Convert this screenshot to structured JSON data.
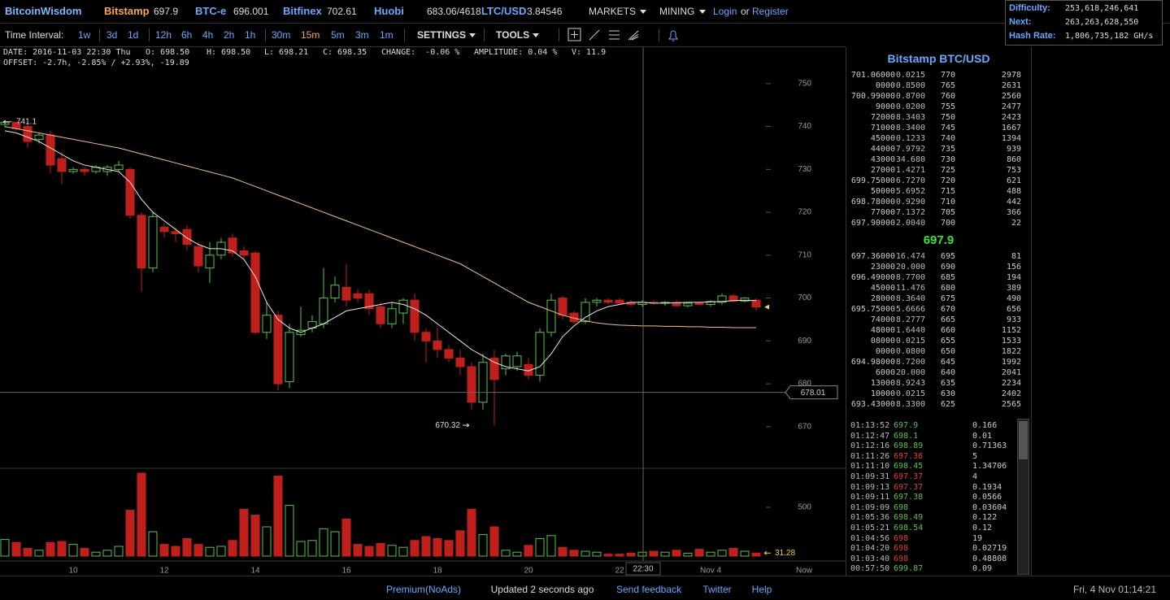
{
  "header": {
    "brand": "BitcoinWisdom",
    "tickers": [
      {
        "name": "Bitstamp",
        "price": "697.9"
      },
      {
        "name": "BTC-e",
        "price": "696.001"
      },
      {
        "name": "Bitfinex",
        "price": "702.61"
      },
      {
        "name": "Huobi",
        "price": "683.06/4618"
      },
      {
        "name": "LTC/USD",
        "price": "3.84546"
      }
    ],
    "menus": [
      "MARKETS",
      "MINING"
    ],
    "login": "Login",
    "or": "or",
    "register": "Register"
  },
  "network": [
    {
      "label": "Difficulty:",
      "value": "253,618,246,641"
    },
    {
      "label": "Next:",
      "value": "263,263,628,550"
    },
    {
      "label": "Hash Rate:",
      "value": "1,806,735,182 GH/s"
    }
  ],
  "toolbar": {
    "label": "Time Interval:",
    "intervals": [
      "1w",
      "3d",
      "1d",
      "12h",
      "6h",
      "4h",
      "2h",
      "1h",
      "30m",
      "15m",
      "5m",
      "3m",
      "1m"
    ],
    "settings": "SETTINGS",
    "tools": "TOOLS"
  },
  "info": {
    "fields": [
      "DATE: 2016-11-03 22:30 Thu",
      "O: 698.50",
      "H: 698.50",
      "L: 698.21",
      "C: 698.35",
      "CHANGE:  -0.06 %",
      "AMPLITUDE: 0.04 %",
      "V: 11.9"
    ],
    "offset": "OFFSET: -2.7h, -2.85% / +2.93%, -19.89"
  },
  "chart_data": {
    "type": "candlestick",
    "categories": [
      null,
      null,
      null,
      null,
      null,
      null,
      "10",
      null,
      null,
      null,
      null,
      null,
      null,
      null,
      "12",
      null,
      null,
      null,
      null,
      null,
      null,
      null,
      "14",
      null,
      null,
      null,
      null,
      null,
      null,
      null,
      "16",
      null,
      null,
      null,
      null,
      null,
      null,
      null,
      "18",
      null,
      null,
      null,
      null,
      null,
      null,
      null,
      "20",
      null,
      null,
      null,
      null,
      null,
      null,
      null,
      "22",
      null,
      null,
      null,
      null,
      null,
      null,
      null,
      "Nov 4",
      null,
      null,
      null,
      null
    ],
    "open": [
      740.5,
      741,
      740,
      737,
      738,
      732.5,
      729.5,
      730,
      729.5,
      729.5,
      730,
      730,
      719.3,
      707,
      716.5,
      715.5,
      716,
      712,
      707,
      710,
      714,
      711,
      710.5,
      692,
      696,
      680.5,
      691.5,
      693,
      694,
      700,
      702.5,
      701,
      701,
      698,
      694,
      696.5,
      699.5,
      692,
      690,
      688,
      686,
      684,
      675.7,
      686,
      683.5,
      684,
      684.5,
      682,
      692,
      700,
      696.5,
      694.5,
      699,
      699.5,
      699.5,
      699,
      698.5,
      699,
      698.8,
      699,
      698.2,
      698.8,
      698.5,
      699,
      700.5,
      699.3,
      699.5
    ],
    "high": [
      741.1,
      741,
      741,
      738.5,
      739,
      734,
      730.5,
      730.5,
      731,
      731,
      732,
      730.5,
      720,
      720,
      717.5,
      716.5,
      717,
      713,
      713,
      714,
      715,
      712,
      711,
      699,
      697,
      694,
      698,
      696,
      707,
      705,
      708,
      702,
      702,
      699,
      699,
      700,
      701,
      693,
      693,
      689,
      688,
      685,
      687,
      688,
      687,
      687.5,
      686,
      693,
      701,
      700.5,
      697,
      700,
      700,
      700,
      700,
      699.5,
      699.5,
      699.5,
      699.3,
      699.5,
      699,
      699.2,
      699.5,
      701,
      701,
      700.2,
      700
    ],
    "low": [
      739.8,
      739,
      735,
      736,
      729,
      726.5,
      729,
      728.5,
      729,
      728.5,
      729.5,
      718.5,
      701.5,
      706,
      714,
      713,
      711,
      706,
      703.5,
      709,
      709.5,
      709,
      691.5,
      690.5,
      678.5,
      679,
      691,
      692,
      693,
      699,
      698,
      699,
      696,
      693,
      693,
      694,
      690,
      685,
      686,
      685,
      682,
      674,
      674,
      670.32,
      682,
      683,
      681,
      680.5,
      691,
      695,
      694,
      694,
      698,
      698.5,
      698.5,
      698,
      698,
      698.5,
      698.2,
      698,
      697.8,
      698.3,
      698,
      698.5,
      699,
      699,
      697
    ],
    "close": [
      741,
      739.5,
      736.5,
      738,
      731,
      729.5,
      730,
      729.5,
      730.5,
      730.5,
      731,
      719.3,
      707,
      719,
      715.5,
      715,
      712.5,
      707.5,
      710,
      713,
      710.5,
      710,
      692,
      696,
      680,
      692,
      692.5,
      694.5,
      700,
      703,
      699.5,
      700,
      697.5,
      694,
      697.5,
      699.5,
      692,
      690,
      688,
      686,
      684,
      675.7,
      685,
      681,
      686.5,
      686.5,
      682,
      692,
      699.5,
      696,
      694.5,
      699,
      699.5,
      699,
      698.8,
      698.5,
      699,
      698.8,
      699,
      698.2,
      698.8,
      698.5,
      699.2,
      700.5,
      699.3,
      700,
      697.9
    ],
    "volume": [
      170,
      140,
      80,
      60,
      140,
      150,
      120,
      80,
      40,
      60,
      100,
      470,
      850,
      250,
      120,
      100,
      180,
      120,
      90,
      100,
      160,
      480,
      420,
      300,
      820,
      520,
      150,
      160,
      280,
      250,
      380,
      120,
      100,
      130,
      110,
      90,
      160,
      200,
      180,
      160,
      260,
      480,
      220,
      300,
      60,
      40,
      110,
      180,
      210,
      90,
      60,
      50,
      40,
      20,
      20,
      30,
      40,
      50,
      40,
      60,
      30,
      70,
      40,
      60,
      80,
      50,
      31.28
    ],
    "ma": [
      {
        "color": "#e8e8e8",
        "values": [
          739,
          738.5,
          737.5,
          736.5,
          735,
          733.5,
          732,
          731,
          730.5,
          730,
          729.5,
          727,
          723,
          720,
          718,
          716,
          714,
          712.5,
          711.5,
          711.5,
          711,
          709,
          705,
          699,
          695,
          693,
          692,
          693,
          694,
          695.5,
          697,
          697.5,
          698,
          698.5,
          699,
          698.5,
          697.5,
          696,
          694,
          692,
          690,
          688,
          686.5,
          685,
          684,
          683.5,
          683,
          684,
          687,
          691,
          693.5,
          695.5,
          697,
          698,
          698.5,
          699,
          699,
          698.8,
          698.8,
          698.9,
          699,
          699,
          699.1,
          699.2,
          699.4,
          699.5,
          699.4
        ]
      },
      {
        "color": "#f2c08a",
        "values": [
          740,
          739.5,
          739,
          738.5,
          738,
          737.5,
          737,
          736.5,
          736,
          735.5,
          735,
          734.3,
          733.6,
          732.9,
          732.2,
          731.5,
          730.8,
          730.1,
          729.4,
          728.7,
          728,
          727,
          726,
          725,
          724,
          723,
          722,
          721,
          720,
          719,
          718,
          717,
          716,
          715,
          714,
          713,
          712,
          711,
          710,
          709,
          708,
          706.5,
          705,
          703.5,
          702,
          700.5,
          699,
          698,
          697,
          696,
          695.3,
          694.7,
          694.2,
          693.9,
          693.7,
          693.6,
          693.5,
          693.5,
          693.4,
          693.4,
          693.3,
          693.3,
          693.2,
          693.2,
          693.1,
          693.1,
          693.1
        ]
      }
    ],
    "up_color": "#5cc24a",
    "down_color": "#c0201c",
    "ylim": [
      660.3,
      758.5
    ],
    "yticks": [
      670,
      680,
      690,
      700,
      710,
      720,
      730,
      740,
      750
    ],
    "volume_ylim": [
      0,
      900
    ],
    "volume_yticks": [
      500
    ],
    "crosshair": {
      "price": 678.01,
      "time": "22:30"
    },
    "now_label": "Now"
  },
  "orderbook": {
    "title": "Bitstamp BTC/USD",
    "asks": [
      [
        "701.06000",
        "0.0215",
        "770",
        "2978"
      ],
      [
        "0000",
        "0.8500",
        "765",
        "2631"
      ],
      [
        "700.99000",
        "0.8700",
        "760",
        "2560"
      ],
      [
        "9000",
        "0.0200",
        "755",
        "2477"
      ],
      [
        "72000",
        "8.3403",
        "750",
        "2423"
      ],
      [
        "71000",
        "8.3400",
        "745",
        "1667"
      ],
      [
        "45000",
        "0.1233",
        "740",
        "1394"
      ],
      [
        "44000",
        "7.9792",
        "735",
        "939"
      ],
      [
        "43000",
        "34.680",
        "730",
        "860"
      ],
      [
        "27000",
        "1.4271",
        "725",
        "753"
      ],
      [
        "699.75000",
        "6.7270",
        "720",
        "621"
      ],
      [
        "50000",
        "5.6952",
        "715",
        "488"
      ],
      [
        "698.78000",
        "0.9290",
        "710",
        "442"
      ],
      [
        "77000",
        "7.1372",
        "705",
        "366"
      ],
      [
        "697.90000",
        "2.0040",
        "700",
        "22"
      ]
    ],
    "last": "697.9",
    "bids": [
      [
        "697.36000",
        "16.474",
        "695",
        "81"
      ],
      [
        "23000",
        "20.000",
        "690",
        "156"
      ],
      [
        "696.49000",
        "8.7700",
        "685",
        "194"
      ],
      [
        "45000",
        "11.476",
        "680",
        "389"
      ],
      [
        "28000",
        "8.3640",
        "675",
        "490"
      ],
      [
        "695.75000",
        "5.6666",
        "670",
        "656"
      ],
      [
        "74000",
        "8.2777",
        "665",
        "933"
      ],
      [
        "48000",
        "1.6440",
        "660",
        "1152"
      ],
      [
        "08000",
        "0.0215",
        "655",
        "1533"
      ],
      [
        "0000",
        "0.0800",
        "650",
        "1822"
      ],
      [
        "694.98000",
        "8.7200",
        "645",
        "1992"
      ],
      [
        "6000",
        "20.000",
        "640",
        "2041"
      ],
      [
        "13000",
        "8.9243",
        "635",
        "2234"
      ],
      [
        "10000",
        "0.0215",
        "630",
        "2402"
      ],
      [
        "693.43000",
        "8.3300",
        "625",
        "2565"
      ]
    ]
  },
  "trades": [
    {
      "time": "01:13:52",
      "price": "697.9",
      "amount": "0.166",
      "color": "#5cc24a"
    },
    {
      "time": "01:12:47",
      "price": "698.1",
      "amount": "0.01",
      "color": "#5cc24a"
    },
    {
      "time": "01:12:16",
      "price": "698.89",
      "amount": "0.71363",
      "color": "#5cc24a"
    },
    {
      "time": "01:11:26",
      "price": "697.36",
      "amount": "5",
      "color": "#e0403a"
    },
    {
      "time": "01:11:10",
      "price": "698.45",
      "amount": "1.34706",
      "color": "#5cc24a"
    },
    {
      "time": "01:09:31",
      "price": "697.37",
      "amount": "4",
      "color": "#e0403a"
    },
    {
      "time": "01:09:13",
      "price": "697.37",
      "amount": "0.1934",
      "color": "#e0403a"
    },
    {
      "time": "01:09:11",
      "price": "697.38",
      "amount": "0.0566",
      "color": "#5cc24a"
    },
    {
      "time": "01:09:09",
      "price": "698",
      "amount": "0.03604",
      "color": "#5cc24a"
    },
    {
      "time": "01:05:36",
      "price": "698.49",
      "amount": "0.122",
      "color": "#5cc24a"
    },
    {
      "time": "01:05:21",
      "price": "698.54",
      "amount": "0.12",
      "color": "#5cc24a"
    },
    {
      "time": "01:04:56",
      "price": "698",
      "amount": "19",
      "color": "#e0403a"
    },
    {
      "time": "01:04:20",
      "price": "698",
      "amount": "0.02719",
      "color": "#e0403a"
    },
    {
      "time": "01:03:40",
      "price": "698",
      "amount": "0.48808",
      "color": "#e0403a"
    },
    {
      "time": "00:57:50",
      "price": "699.87",
      "amount": "0.09",
      "color": "#5cc24a"
    }
  ],
  "footer": {
    "links": [
      "Premium(NoAds)",
      "Updated 2 seconds ago",
      "Send feedback",
      "Twitter",
      "Help"
    ],
    "clock": "Fri, 4 Nov 01:14:21"
  }
}
